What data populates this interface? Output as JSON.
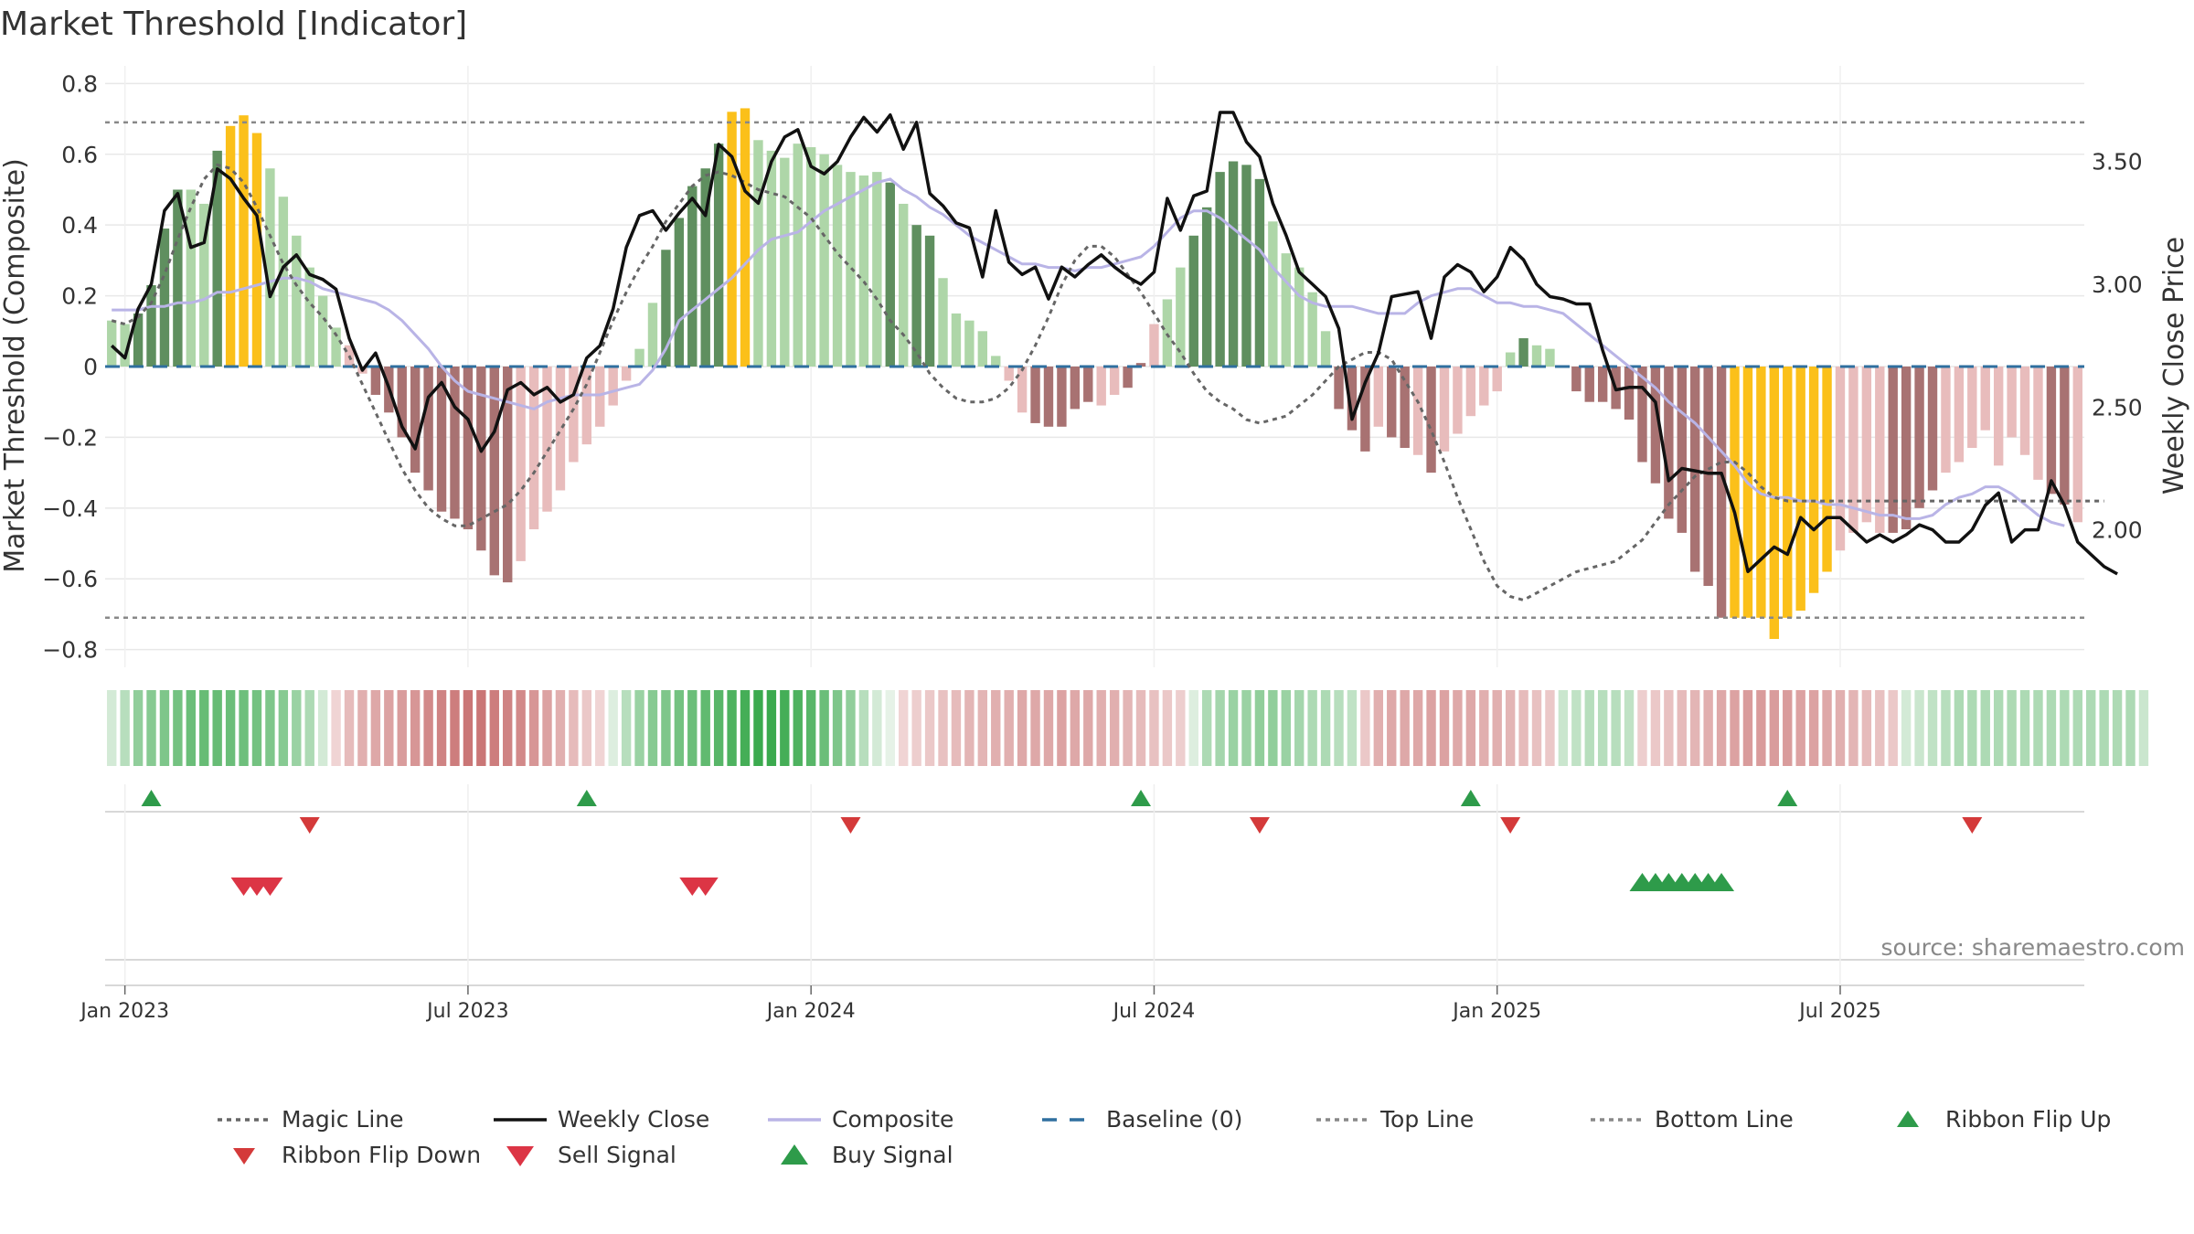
{
  "chart_data": {
    "type": "bar",
    "title": "Market Threshold [Indicator]",
    "ylabel_left": "Market Threshold (Composite)",
    "ylabel_right": "Weekly Close Price",
    "source": "source: sharemaestro.com",
    "ylim_left": [
      -0.85,
      0.85
    ],
    "ylim_right": [
      1.44,
      3.89
    ],
    "yticks_left": [
      0.8,
      0.6,
      0.4,
      0.2,
      0,
      -0.2,
      -0.4,
      -0.6,
      -0.8
    ],
    "yticks_left_labels": [
      "0.8",
      "0.6",
      "0.4",
      "0.2",
      "0",
      "−0.2",
      "−0.4",
      "−0.6",
      "−0.8"
    ],
    "yticks_right": [
      3.5,
      3.0,
      2.5,
      2.0
    ],
    "yticks_right_labels": [
      "3.50",
      "3.00",
      "2.50",
      "2.00"
    ],
    "x_tick_labels": [
      "Jan 2023",
      "Jul 2023",
      "Jan 2024",
      "Jul 2024",
      "Jan 2025",
      "Jul 2025"
    ],
    "x_tick_weeks": [
      1,
      27,
      53,
      79,
      105,
      131
    ],
    "top_line": 0.69,
    "bottom_line": -0.71,
    "baseline": 0,
    "composite": [
      0.13,
      0.12,
      0.15,
      0.23,
      0.39,
      0.5,
      0.5,
      0.46,
      0.61,
      0.68,
      0.71,
      0.66,
      0.56,
      0.48,
      0.37,
      0.28,
      0.2,
      0.11,
      0.06,
      -0.02,
      -0.08,
      -0.13,
      -0.2,
      -0.3,
      -0.35,
      -0.41,
      -0.43,
      -0.46,
      -0.52,
      -0.59,
      -0.61,
      -0.55,
      -0.46,
      -0.41,
      -0.35,
      -0.27,
      -0.22,
      -0.17,
      -0.11,
      -0.04,
      0.05,
      0.18,
      0.33,
      0.42,
      0.51,
      0.56,
      0.63,
      0.72,
      0.73,
      0.64,
      0.61,
      0.59,
      0.63,
      0.62,
      0.6,
      0.57,
      0.55,
      0.54,
      0.55,
      0.52,
      0.46,
      0.4,
      0.37,
      0.25,
      0.15,
      0.13,
      0.1,
      0.03,
      -0.04,
      -0.13,
      -0.16,
      -0.17,
      -0.17,
      -0.12,
      -0.1,
      -0.11,
      -0.08,
      -0.06,
      0.01,
      0.12,
      0.19,
      0.28,
      0.37,
      0.45,
      0.55,
      0.58,
      0.57,
      0.53,
      0.41,
      0.32,
      0.28,
      0.21,
      0.1,
      -0.12,
      -0.18,
      -0.24,
      -0.17,
      -0.2,
      -0.23,
      -0.25,
      -0.3,
      -0.24,
      -0.19,
      -0.14,
      -0.11,
      -0.07,
      0.04,
      0.08,
      0.06,
      0.05,
      0.0,
      -0.07,
      -0.1,
      -0.1,
      -0.12,
      -0.15,
      -0.27,
      -0.33,
      -0.43,
      -0.47,
      -0.58,
      -0.62,
      -0.71,
      -0.71,
      -0.71,
      -0.71,
      -0.77,
      -0.71,
      -0.69,
      -0.64,
      -0.58,
      -0.52,
      -0.47,
      -0.44,
      -0.47,
      -0.47,
      -0.46,
      -0.4,
      -0.35,
      -0.3,
      -0.27,
      -0.23,
      -0.18,
      -0.28,
      -0.2,
      -0.25,
      -0.32,
      -0.36,
      -0.39,
      -0.44
    ],
    "bar_colors": [
      "ltg",
      "ltg",
      "dkg",
      "dkg",
      "dkg",
      "dkg",
      "ltg",
      "ltg",
      "dkg",
      "or",
      "or",
      "or",
      "ltg",
      "ltg",
      "ltg",
      "ltg",
      "ltg",
      "ltg",
      "ltr",
      "ltr",
      "dkr",
      "dkr",
      "dkr",
      "dkr",
      "dkr",
      "dkr",
      "dkr",
      "dkr",
      "dkr",
      "dkr",
      "dkr",
      "ltr",
      "ltr",
      "ltr",
      "ltr",
      "ltr",
      "ltr",
      "ltr",
      "ltr",
      "ltr",
      "ltg",
      "ltg",
      "dkg",
      "dkg",
      "dkg",
      "dkg",
      "dkg",
      "or",
      "or",
      "ltg",
      "ltg",
      "ltg",
      "ltg",
      "ltg",
      "ltg",
      "ltg",
      "ltg",
      "ltg",
      "ltg",
      "dkg",
      "ltg",
      "dkg",
      "dkg",
      "ltg",
      "ltg",
      "ltg",
      "ltg",
      "ltg",
      "ltr",
      "ltr",
      "dkr",
      "dkr",
      "dkr",
      "dkr",
      "dkr",
      "ltr",
      "ltr",
      "dkr",
      "dkr",
      "ltr",
      "ltg",
      "ltg",
      "dkg",
      "dkg",
      "dkg",
      "dkg",
      "dkg",
      "dkg",
      "ltg",
      "ltg",
      "ltg",
      "ltg",
      "ltg",
      "dkr",
      "dkr",
      "dkr",
      "ltr",
      "dkr",
      "dkr",
      "ltr",
      "dkr",
      "ltr",
      "ltr",
      "ltr",
      "ltr",
      "ltr",
      "ltg",
      "dkg",
      "ltg",
      "ltg",
      "ltg",
      "dkr",
      "dkr",
      "dkr",
      "dkr",
      "dkr",
      "dkr",
      "dkr",
      "dkr",
      "dkr",
      "dkr",
      "dkr",
      "dkr",
      "or",
      "or",
      "or",
      "or",
      "or",
      "or",
      "or",
      "or",
      "ltr",
      "ltr",
      "ltr",
      "ltr",
      "dkr",
      "dkr",
      "dkr",
      "dkr",
      "ltr",
      "ltr",
      "ltr",
      "ltr",
      "ltr",
      "ltr",
      "ltr",
      "ltr",
      "dkr",
      "dkr",
      "ltr",
      "dkr",
      "dkr",
      "ltr",
      "dkr"
    ],
    "composite_line": [
      0.16,
      0.16,
      0.16,
      0.17,
      0.17,
      0.18,
      0.18,
      0.19,
      0.21,
      0.21,
      0.22,
      0.23,
      0.24,
      0.25,
      0.25,
      0.24,
      0.22,
      0.21,
      0.2,
      0.19,
      0.18,
      0.16,
      0.13,
      0.09,
      0.05,
      0.0,
      -0.04,
      -0.07,
      -0.08,
      -0.09,
      -0.1,
      -0.11,
      -0.12,
      -0.1,
      -0.09,
      -0.08,
      -0.08,
      -0.08,
      -0.07,
      -0.06,
      -0.05,
      -0.01,
      0.05,
      0.13,
      0.16,
      0.19,
      0.22,
      0.25,
      0.29,
      0.33,
      0.36,
      0.37,
      0.38,
      0.41,
      0.44,
      0.46,
      0.48,
      0.5,
      0.52,
      0.53,
      0.5,
      0.48,
      0.45,
      0.43,
      0.4,
      0.37,
      0.35,
      0.33,
      0.31,
      0.29,
      0.29,
      0.28,
      0.28,
      0.27,
      0.28,
      0.28,
      0.29,
      0.3,
      0.31,
      0.34,
      0.38,
      0.42,
      0.44,
      0.44,
      0.42,
      0.39,
      0.36,
      0.33,
      0.28,
      0.24,
      0.2,
      0.18,
      0.17,
      0.17,
      0.17,
      0.16,
      0.15,
      0.15,
      0.15,
      0.18,
      0.2,
      0.21,
      0.22,
      0.22,
      0.2,
      0.18,
      0.18,
      0.17,
      0.17,
      0.16,
      0.15,
      0.12,
      0.09,
      0.06,
      0.03,
      0.0,
      -0.03,
      -0.06,
      -0.1,
      -0.13,
      -0.16,
      -0.2,
      -0.24,
      -0.28,
      -0.33,
      -0.36,
      -0.37,
      -0.37,
      -0.38,
      -0.38,
      -0.39,
      -0.39,
      -0.4,
      -0.41,
      -0.42,
      -0.42,
      -0.43,
      -0.43,
      -0.42,
      -0.39,
      -0.37,
      -0.36,
      -0.34,
      -0.34,
      -0.36,
      -0.39,
      -0.42,
      -0.44,
      -0.45
    ],
    "magic_line": [
      0.13,
      0.12,
      0.14,
      0.18,
      0.26,
      0.36,
      0.45,
      0.53,
      0.57,
      0.56,
      0.52,
      0.45,
      0.37,
      0.29,
      0.23,
      0.18,
      0.14,
      0.09,
      0.03,
      -0.05,
      -0.13,
      -0.21,
      -0.29,
      -0.35,
      -0.4,
      -0.43,
      -0.45,
      -0.45,
      -0.43,
      -0.41,
      -0.39,
      -0.35,
      -0.3,
      -0.24,
      -0.18,
      -0.12,
      -0.05,
      0.04,
      0.13,
      0.21,
      0.28,
      0.34,
      0.41,
      0.46,
      0.51,
      0.54,
      0.55,
      0.54,
      0.52,
      0.5,
      0.49,
      0.48,
      0.45,
      0.42,
      0.37,
      0.32,
      0.28,
      0.24,
      0.19,
      0.13,
      0.09,
      0.04,
      -0.02,
      -0.06,
      -0.09,
      -0.1,
      -0.1,
      -0.09,
      -0.06,
      -0.01,
      0.06,
      0.14,
      0.23,
      0.3,
      0.34,
      0.34,
      0.31,
      0.26,
      0.21,
      0.15,
      0.09,
      0.04,
      -0.02,
      -0.07,
      -0.1,
      -0.12,
      -0.15,
      -0.16,
      -0.15,
      -0.14,
      -0.11,
      -0.08,
      -0.04,
      0.0,
      0.02,
      0.04,
      0.04,
      0.02,
      -0.04,
      -0.1,
      -0.18,
      -0.27,
      -0.37,
      -0.46,
      -0.55,
      -0.62,
      -0.65,
      -0.66,
      -0.64,
      -0.62,
      -0.6,
      -0.58,
      -0.57,
      -0.56,
      -0.55,
      -0.52,
      -0.49,
      -0.44,
      -0.39,
      -0.35,
      -0.31,
      -0.29,
      -0.27,
      -0.27,
      -0.3,
      -0.34,
      -0.37,
      -0.38,
      -0.38,
      -0.38,
      -0.38,
      -0.38,
      -0.38,
      -0.38,
      -0.38,
      -0.38,
      -0.38,
      -0.38,
      -0.38,
      -0.38,
      -0.38,
      -0.38,
      -0.38,
      -0.38,
      -0.38,
      -0.38,
      -0.38,
      -0.38,
      -0.38,
      -0.38,
      -0.38,
      -0.38
    ],
    "weekly_close": [
      2.75,
      2.7,
      2.9,
      3.0,
      3.3,
      3.37,
      3.15,
      3.17,
      3.47,
      3.43,
      3.35,
      3.28,
      2.95,
      3.07,
      3.12,
      3.04,
      3.02,
      2.98,
      2.78,
      2.65,
      2.72,
      2.58,
      2.42,
      2.33,
      2.54,
      2.6,
      2.5,
      2.45,
      2.32,
      2.4,
      2.57,
      2.6,
      2.55,
      2.58,
      2.52,
      2.55,
      2.7,
      2.75,
      2.9,
      3.15,
      3.28,
      3.3,
      3.22,
      3.29,
      3.35,
      3.28,
      3.57,
      3.52,
      3.38,
      3.33,
      3.5,
      3.6,
      3.63,
      3.48,
      3.45,
      3.5,
      3.6,
      3.68,
      3.62,
      3.69,
      3.55,
      3.66,
      3.37,
      3.32,
      3.25,
      3.23,
      3.03,
      3.3,
      3.09,
      3.04,
      3.07,
      2.94,
      3.07,
      3.03,
      3.08,
      3.12,
      3.07,
      3.03,
      3.0,
      3.05,
      3.35,
      3.22,
      3.36,
      3.38,
      3.7,
      3.7,
      3.58,
      3.52,
      3.33,
      3.2,
      3.05,
      3.0,
      2.95,
      2.82,
      2.45,
      2.6,
      2.72,
      2.95,
      2.96,
      2.97,
      2.78,
      3.03,
      3.08,
      3.05,
      2.97,
      3.03,
      3.15,
      3.1,
      3.0,
      2.95,
      2.94,
      2.92,
      2.92,
      2.73,
      2.57,
      2.58,
      2.58,
      2.52,
      2.2,
      2.25,
      2.24,
      2.23,
      2.23,
      2.07,
      1.83,
      1.88,
      1.93,
      1.9,
      2.05,
      2.0,
      2.05,
      2.05,
      2.0,
      1.95,
      1.98,
      1.95,
      1.98,
      2.02,
      2.0,
      1.95,
      1.95,
      2.0,
      2.1,
      2.15,
      1.95,
      2.0,
      2.0,
      2.2,
      2.1,
      1.95,
      1.9,
      1.85,
      1.82
    ],
    "ribbon": [
      0.15,
      0.3,
      0.5,
      0.55,
      0.6,
      0.65,
      0.7,
      0.72,
      0.72,
      0.7,
      0.68,
      0.65,
      0.6,
      0.55,
      0.45,
      0.35,
      0.15,
      -0.1,
      -0.3,
      -0.4,
      -0.45,
      -0.5,
      -0.55,
      -0.6,
      -0.7,
      -0.75,
      -0.8,
      -0.85,
      -0.85,
      -0.8,
      -0.75,
      -0.7,
      -0.6,
      -0.5,
      -0.4,
      -0.3,
      -0.2,
      -0.1,
      0.1,
      0.3,
      0.45,
      0.55,
      0.6,
      0.65,
      0.7,
      0.75,
      0.8,
      0.85,
      0.9,
      0.95,
      0.95,
      0.9,
      0.85,
      0.8,
      0.7,
      0.6,
      0.5,
      0.3,
      0.15,
      0.05,
      -0.1,
      -0.15,
      -0.2,
      -0.25,
      -0.3,
      -0.35,
      -0.35,
      -0.4,
      -0.4,
      -0.45,
      -0.45,
      -0.45,
      -0.5,
      -0.45,
      -0.45,
      -0.4,
      -0.4,
      -0.35,
      -0.3,
      -0.25,
      -0.2,
      -0.15,
      0.1,
      0.35,
      0.4,
      0.45,
      0.45,
      0.5,
      0.5,
      0.45,
      0.4,
      0.35,
      0.35,
      0.3,
      0.25,
      -0.2,
      -0.4,
      -0.45,
      -0.45,
      -0.45,
      -0.5,
      -0.5,
      -0.45,
      -0.45,
      -0.4,
      -0.4,
      -0.35,
      -0.3,
      -0.25,
      -0.2,
      0.2,
      0.25,
      0.3,
      0.3,
      0.3,
      0.25,
      -0.15,
      -0.2,
      -0.25,
      -0.3,
      -0.35,
      -0.4,
      -0.45,
      -0.5,
      -0.55,
      -0.55,
      -0.55,
      -0.55,
      -0.5,
      -0.5,
      -0.45,
      -0.4,
      -0.35,
      -0.3,
      -0.25,
      -0.2,
      0.15,
      0.2,
      0.25,
      0.3,
      0.35,
      0.35,
      0.35,
      0.35,
      0.35,
      0.35,
      0.35,
      0.35,
      0.35,
      0.35,
      0.35,
      0.35,
      0.35,
      0.35,
      0.2
    ],
    "ribbon_flip_up_weeks": [
      3,
      36,
      78,
      103,
      127
    ],
    "ribbon_flip_down_weeks": [
      15,
      56,
      87,
      106,
      141
    ],
    "sell_signal_weeks": [
      10,
      11,
      12,
      44,
      45
    ],
    "buy_signal_weeks": [
      116,
      117,
      118,
      119,
      120,
      121,
      122
    ],
    "legend": [
      {
        "label": "Magic Line",
        "kind": "line",
        "style": "dotted",
        "color": "#666666"
      },
      {
        "label": "Weekly Close",
        "kind": "line",
        "style": "solid",
        "color": "#111111"
      },
      {
        "label": "Composite",
        "kind": "line",
        "style": "solid",
        "color": "#b9b4e6"
      },
      {
        "label": "Baseline (0)",
        "kind": "line",
        "style": "dashed",
        "color": "#2f6f9f"
      },
      {
        "label": "Top Line",
        "kind": "line",
        "style": "dotted",
        "color": "#888888"
      },
      {
        "label": "Bottom Line",
        "kind": "line",
        "style": "dotted",
        "color": "#888888"
      },
      {
        "label": "Ribbon Flip Up",
        "kind": "marker",
        "shape": "up",
        "color": "#2e9b4a"
      },
      {
        "label": "Ribbon Flip Down",
        "kind": "marker",
        "shape": "down",
        "color": "#d43a3a"
      },
      {
        "label": "Sell Signal",
        "kind": "marker",
        "shape": "down-big",
        "color": "#dc3545"
      },
      {
        "label": "Buy Signal",
        "kind": "marker",
        "shape": "up-big",
        "color": "#2e9b4a"
      }
    ],
    "colors": {
      "dark_green": "#5f8f5f",
      "light_green": "#aed6a8",
      "dark_red": "#a87272",
      "light_red": "#e8bcbc",
      "orange": "#fbc01a",
      "grid": "#e8e8e8"
    }
  }
}
